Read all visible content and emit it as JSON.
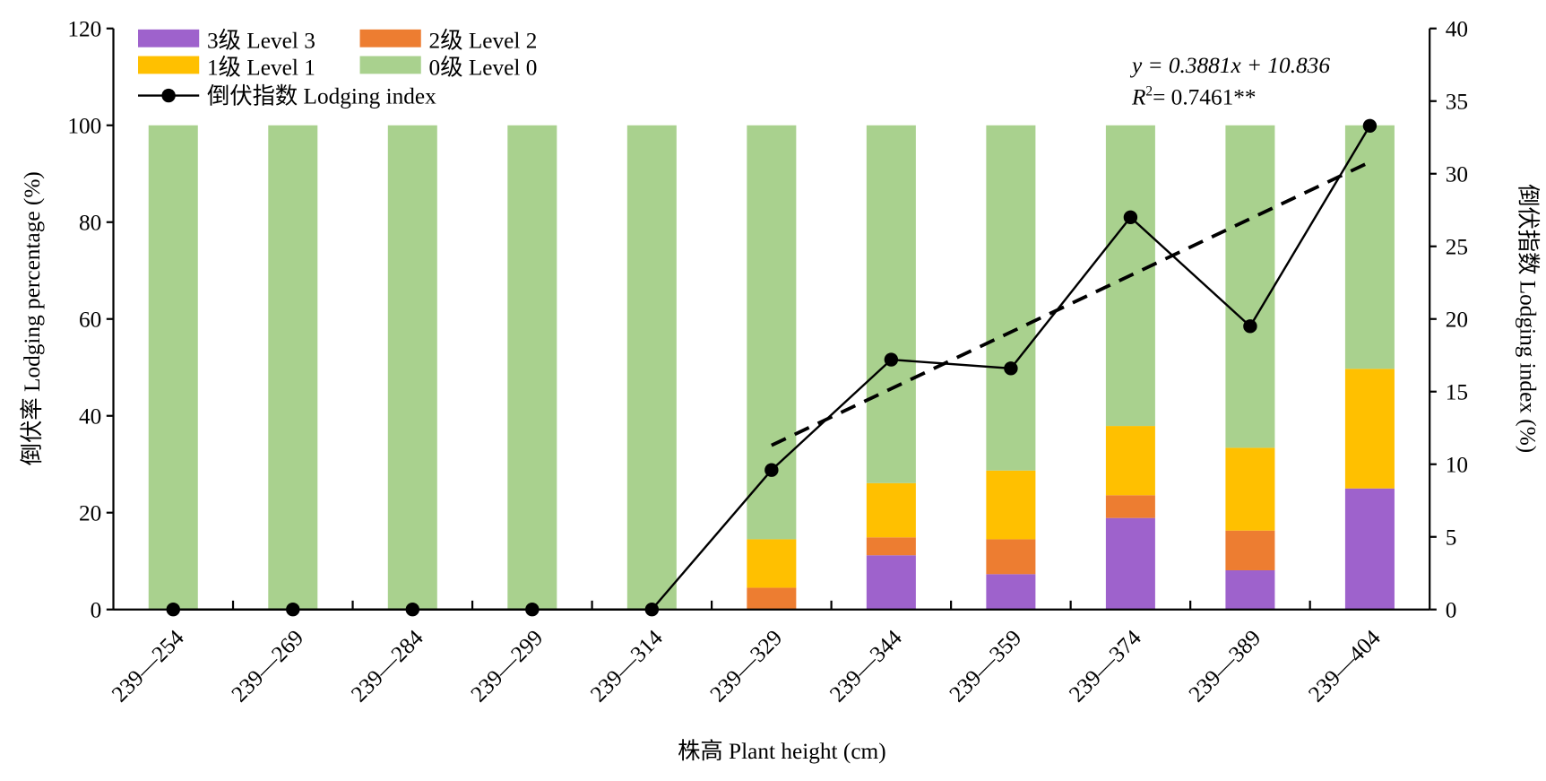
{
  "chart_data": {
    "type": "bar",
    "subtype": "stacked bar with line on secondary axis",
    "xlabel": "株高 Plant height (cm)",
    "ylabel": "倒伏率 Lodging percentage (%)",
    "y2label": "倒伏指数 Lodging index (%)",
    "ylim": [
      0,
      120
    ],
    "y2lim": [
      0,
      40
    ],
    "yticks": [
      0,
      20,
      40,
      60,
      80,
      100,
      120
    ],
    "y2ticks": [
      0,
      5,
      10,
      15,
      20,
      25,
      30,
      35,
      40
    ],
    "categories": [
      "239—254",
      "239—269",
      "239—284",
      "239—299",
      "239—314",
      "239—329",
      "239—344",
      "239—359",
      "239—374",
      "239—389",
      "239—404"
    ],
    "series": [
      {
        "name": "3级 Level 3",
        "color": "#9E62CC",
        "values": [
          0,
          0,
          0,
          0,
          0,
          0,
          11.2,
          7.3,
          18.9,
          8.1,
          25.0
        ]
      },
      {
        "name": "2级 Level 2",
        "color": "#ED7D31",
        "values": [
          0,
          0,
          0,
          0,
          0,
          4.5,
          3.7,
          7.2,
          4.7,
          8.2,
          0
        ]
      },
      {
        "name": "1级 Level 1",
        "color": "#FFC000",
        "values": [
          0,
          0,
          0,
          0,
          0,
          10.0,
          11.2,
          14.2,
          14.3,
          17.1,
          24.7
        ]
      },
      {
        "name": "0级 Level 0",
        "color": "#A9D18E",
        "values": [
          100,
          100,
          100,
          100,
          100,
          85.5,
          73.9,
          71.3,
          62.1,
          66.6,
          50.3
        ]
      }
    ],
    "line": {
      "name": "倒伏指数 Lodging index",
      "axis": "right",
      "values": [
        0,
        0,
        0,
        0,
        0,
        9.6,
        17.2,
        16.6,
        27.0,
        19.5,
        33.3
      ]
    },
    "trendline": {
      "axis": "right",
      "from_category": 5,
      "to_category": 10,
      "start": 11.3,
      "end": 30.8,
      "equation": "y = 0.3881x + 10.836",
      "r2_label": "R",
      "r2_sup": "2",
      "r2_value": "= 0.7461**"
    },
    "legend": "top-left",
    "grid": false
  }
}
